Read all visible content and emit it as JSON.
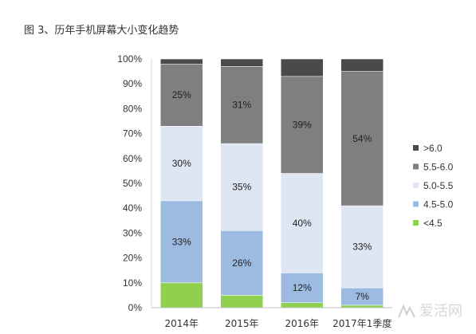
{
  "chart_data": {
    "type": "bar",
    "stacked": true,
    "title": "图 3、历年手机屏幕大小变化趋势",
    "categories": [
      "2014年",
      "2015年",
      "2016年",
      "2017年1季度"
    ],
    "ylim": [
      0,
      100
    ],
    "y_ticks": [
      "0%",
      "10%",
      "20%",
      "30%",
      "40%",
      "50%",
      "60%",
      "70%",
      "80%",
      "90%",
      "100%"
    ],
    "legend_position": "right",
    "series": [
      {
        "name": "<4.5",
        "color": "#8fd14f",
        "values": [
          10,
          5,
          2,
          1
        ],
        "labels": [
          "",
          "",
          "",
          ""
        ]
      },
      {
        "name": "4.5-5.0",
        "color": "#9dbbe0",
        "values": [
          33,
          26,
          12,
          7
        ],
        "labels": [
          "33%",
          "26%",
          "12%",
          "7%"
        ]
      },
      {
        "name": "5.0-5.5",
        "color": "#dfe6f3",
        "values": [
          30,
          35,
          40,
          33
        ],
        "labels": [
          "30%",
          "35%",
          "40%",
          "33%"
        ]
      },
      {
        "name": "5.5-6.0",
        "color": "#7f7f7f",
        "values": [
          25,
          31,
          39,
          54
        ],
        "labels": [
          "25%",
          "31%",
          "39%",
          "54%"
        ]
      },
      {
        "name": ">6.0",
        "color": "#4a4a4a",
        "values": [
          2,
          3,
          7,
          5
        ],
        "labels": [
          "",
          "",
          "",
          ""
        ]
      }
    ]
  },
  "watermark": {
    "text": "爱活网"
  }
}
